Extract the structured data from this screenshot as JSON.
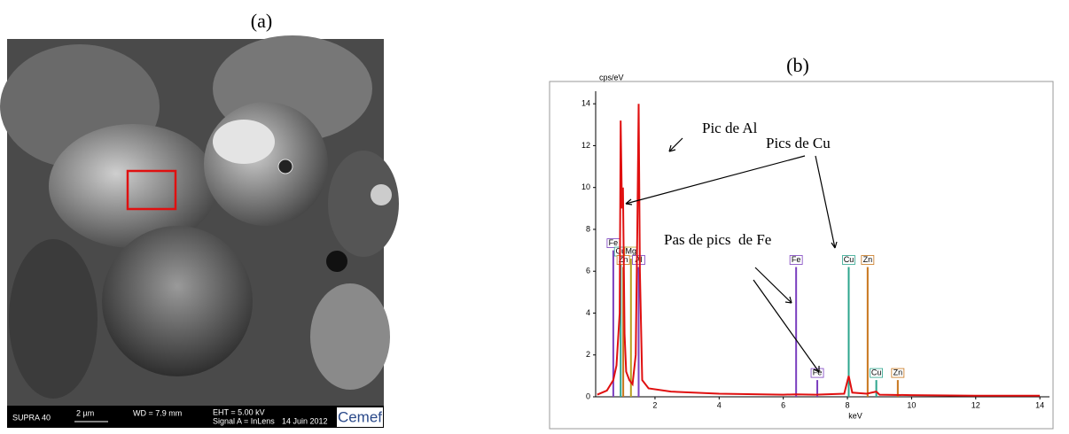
{
  "panels": {
    "a": "(a)",
    "b": "(b)"
  },
  "sem_image": {
    "footer": {
      "instrument": "SUPRA 40",
      "scale": "2 µm",
      "wd": "WD = 7.9 mm",
      "eht": "EHT = 5.00 kV",
      "signal": "Signal A = InLens",
      "date": "14 Juin 2012",
      "logo": "Cemef"
    }
  },
  "chart_data": {
    "type": "line",
    "ylabel": "cps/eV",
    "xlabel": "keV",
    "color": "#e01010",
    "x": [
      0.2,
      0.5,
      0.7,
      0.8,
      0.9,
      0.93,
      0.97,
      1.0,
      1.05,
      1.1,
      1.2,
      1.3,
      1.4,
      1.45,
      1.49,
      1.53,
      1.6,
      1.8,
      2.5,
      4,
      6,
      6.4,
      7,
      7.9,
      8.04,
      8.15,
      8.6,
      8.9,
      9,
      10,
      12,
      14
    ],
    "values": [
      0.1,
      0.3,
      0.8,
      1.5,
      4,
      13.2,
      9,
      10,
      3,
      1.2,
      0.8,
      0.6,
      2,
      8,
      14,
      6,
      0.8,
      0.4,
      0.25,
      0.15,
      0.1,
      0.12,
      0.1,
      0.15,
      1.0,
      0.2,
      0.15,
      0.25,
      0.1,
      0.08,
      0.05,
      0.05
    ],
    "xlim": [
      0.15,
      14.3
    ],
    "ylim": [
      0,
      14.6
    ],
    "xticks": [
      2,
      4,
      6,
      8,
      10,
      12,
      14
    ],
    "yticks": [
      0,
      2,
      4,
      6,
      8,
      10,
      12,
      14
    ],
    "markers": [
      {
        "label": "Fe",
        "x": 0.7,
        "height": 7.0,
        "color": "#7b3fbf"
      },
      {
        "label": "Cu",
        "x": 0.93,
        "height": 6.6,
        "color": "#2ca58d"
      },
      {
        "label": "Mg",
        "x": 1.25,
        "height": 6.6,
        "color": "#b8a020"
      },
      {
        "label": "Zn",
        "x": 1.01,
        "height": 6.2,
        "color": "#c8761c"
      },
      {
        "label": "Al",
        "x": 1.49,
        "height": 6.2,
        "color": "#7b3fbf"
      },
      {
        "label": "Fe",
        "x": 6.4,
        "height": 6.2,
        "color": "#7b3fbf"
      },
      {
        "label": "Fe",
        "x": 7.06,
        "height": 0.8,
        "color": "#7b3fbf"
      },
      {
        "label": "Cu",
        "x": 8.04,
        "height": 6.2,
        "color": "#2ca58d"
      },
      {
        "label": "Zn",
        "x": 8.63,
        "height": 6.2,
        "color": "#c8761c"
      },
      {
        "label": "Cu",
        "x": 8.9,
        "height": 0.8,
        "color": "#2ca58d"
      },
      {
        "label": "Zn",
        "x": 9.57,
        "height": 0.8,
        "color": "#c8761c"
      }
    ],
    "annotations": [
      "Pic de Al",
      "Pics de Cu",
      "Pas de pics  de Fe"
    ]
  }
}
